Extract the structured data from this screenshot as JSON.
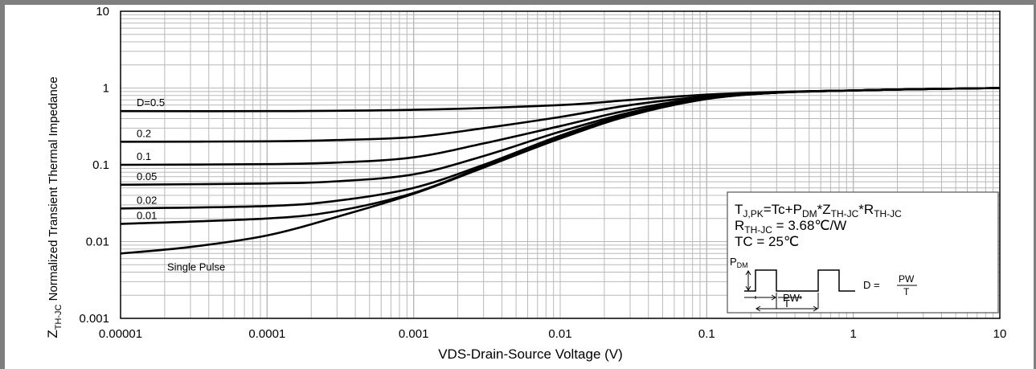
{
  "chart_data": {
    "type": "line",
    "xlabel": "VDS-Drain-Source Voltage (V)",
    "ylabel_main": "Z",
    "ylabel_sub": "TH-JC",
    "ylabel_rest": " Normalized Transient Thermal Impedance",
    "x_scale": "log",
    "y_scale": "log",
    "xlim": [
      1e-05,
      10
    ],
    "ylim": [
      0.001,
      10
    ],
    "grid": true,
    "x_ticks": [
      "0.00001",
      "0.0001",
      "0.001",
      "0.01",
      "0.1",
      "1",
      "10"
    ],
    "y_ticks": [
      "10",
      "1",
      "0.1",
      "0.01",
      "0.001"
    ],
    "series": [
      {
        "name": "D=0.5",
        "points": [
          [
            1e-05,
            0.5
          ],
          [
            0.0001,
            0.5
          ],
          [
            0.001,
            0.52
          ],
          [
            0.01,
            0.6
          ],
          [
            0.03,
            0.7
          ],
          [
            0.1,
            0.82
          ],
          [
            0.3,
            0.89
          ],
          [
            1,
            0.93
          ],
          [
            3,
            0.97
          ],
          [
            10,
            1.0
          ]
        ]
      },
      {
        "name": "0.2",
        "points": [
          [
            1e-05,
            0.2
          ],
          [
            0.0001,
            0.202
          ],
          [
            0.0003,
            0.21
          ],
          [
            0.001,
            0.23
          ],
          [
            0.003,
            0.3
          ],
          [
            0.01,
            0.42
          ],
          [
            0.03,
            0.6
          ],
          [
            0.1,
            0.78
          ],
          [
            0.3,
            0.88
          ],
          [
            1,
            0.93
          ],
          [
            3,
            0.97
          ],
          [
            10,
            1.0
          ]
        ]
      },
      {
        "name": "0.1",
        "points": [
          [
            1e-05,
            0.1
          ],
          [
            0.0001,
            0.102
          ],
          [
            0.0003,
            0.107
          ],
          [
            0.001,
            0.125
          ],
          [
            0.003,
            0.19
          ],
          [
            0.01,
            0.32
          ],
          [
            0.03,
            0.52
          ],
          [
            0.1,
            0.76
          ],
          [
            0.3,
            0.88
          ],
          [
            1,
            0.93
          ],
          [
            3,
            0.97
          ],
          [
            10,
            1.0
          ]
        ]
      },
      {
        "name": "0.05",
        "points": [
          [
            1e-05,
            0.055
          ],
          [
            0.0001,
            0.057
          ],
          [
            0.0003,
            0.061
          ],
          [
            0.001,
            0.075
          ],
          [
            0.003,
            0.13
          ],
          [
            0.01,
            0.27
          ],
          [
            0.03,
            0.48
          ],
          [
            0.1,
            0.74
          ],
          [
            0.3,
            0.87
          ],
          [
            1,
            0.93
          ],
          [
            3,
            0.97
          ],
          [
            10,
            1.0
          ]
        ]
      },
      {
        "name": "0.02",
        "points": [
          [
            1e-05,
            0.027
          ],
          [
            0.0001,
            0.029
          ],
          [
            0.0003,
            0.034
          ],
          [
            0.001,
            0.05
          ],
          [
            0.003,
            0.1
          ],
          [
            0.01,
            0.24
          ],
          [
            0.03,
            0.46
          ],
          [
            0.1,
            0.73
          ],
          [
            0.3,
            0.87
          ],
          [
            1,
            0.93
          ],
          [
            3,
            0.97
          ],
          [
            10,
            1.0
          ]
        ]
      },
      {
        "name": "0.01",
        "points": [
          [
            1e-05,
            0.017
          ],
          [
            0.0001,
            0.02
          ],
          [
            0.0003,
            0.025
          ],
          [
            0.001,
            0.043
          ],
          [
            0.003,
            0.095
          ],
          [
            0.01,
            0.23
          ],
          [
            0.03,
            0.45
          ],
          [
            0.1,
            0.72
          ],
          [
            0.3,
            0.87
          ],
          [
            1,
            0.93
          ],
          [
            3,
            0.97
          ],
          [
            10,
            1.0
          ]
        ]
      },
      {
        "name": "Single Pulse",
        "points": [
          [
            1e-05,
            0.007
          ],
          [
            3e-05,
            0.0085
          ],
          [
            0.0001,
            0.012
          ],
          [
            0.0003,
            0.021
          ],
          [
            0.001,
            0.042
          ],
          [
            0.003,
            0.092
          ],
          [
            0.01,
            0.22
          ],
          [
            0.03,
            0.44
          ],
          [
            0.1,
            0.72
          ],
          [
            0.3,
            0.87
          ],
          [
            1,
            0.93
          ],
          [
            3,
            0.97
          ],
          [
            10,
            1.0
          ]
        ]
      }
    ],
    "annotation": {
      "line1_a": "T",
      "line1_a_sub": "J,PK",
      "line1_b": "=Tc+P",
      "line1_b_sub": "DM",
      "line1_c": "*Z",
      "line1_c_sub": "TH-JC",
      "line1_d": "*R",
      "line1_d_sub": "TH-JC",
      "line2_a": "R",
      "line2_a_sub": "TH-JC",
      "line2_b": " = 3.68℃/W",
      "line3": "TC = 25℃",
      "pdm": "P",
      "pdm_sub": "DM",
      "pw": "PW",
      "t": "T",
      "d_eq": "D =",
      "frac_num": "PW",
      "frac_den": "T"
    }
  }
}
